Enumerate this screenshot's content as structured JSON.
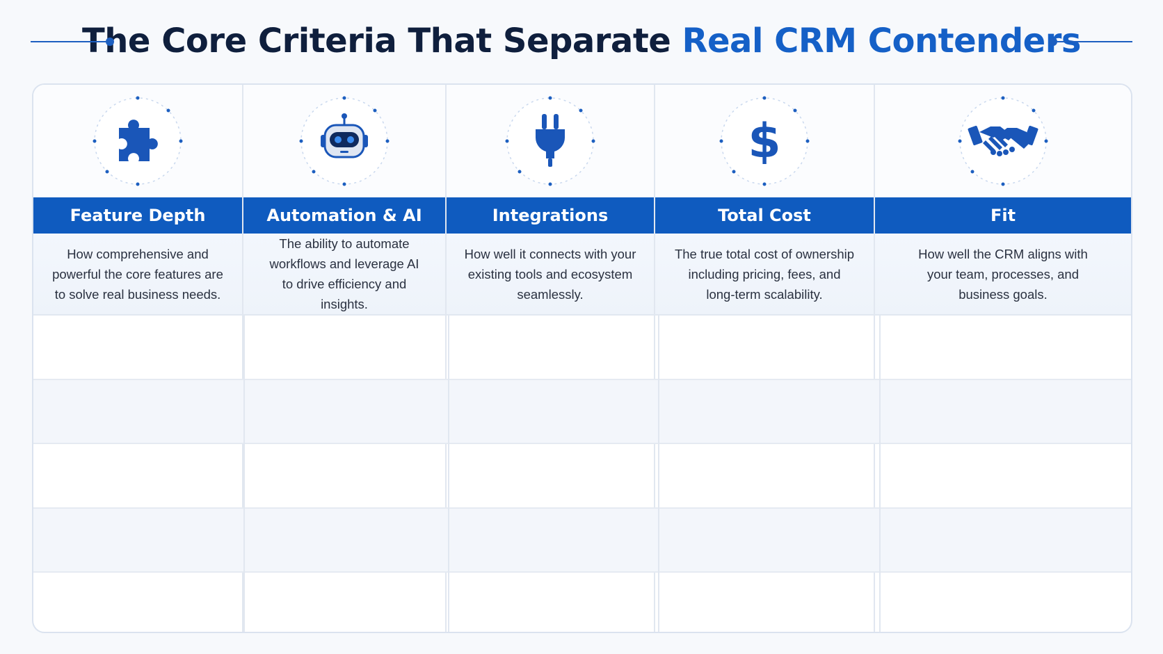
{
  "title": {
    "main": "The Core Criteria That Separate",
    "accent": "Real CRM Contenders"
  },
  "colors": {
    "brand_blue": "#0f5bbf",
    "title_dark": "#0f1f3d",
    "accent_blue": "#1560c7"
  },
  "criteria": [
    {
      "icon": "puzzle-icon",
      "label": "Feature Depth",
      "description": "How comprehensive and\npowerful the core features are\nto solve real business needs."
    },
    {
      "icon": "robot-icon",
      "label": "Automation & AI",
      "description": "The ability to automate\nworkflows and leverage AI\nto drive efficiency and insights."
    },
    {
      "icon": "plug-icon",
      "label": "Integrations",
      "description": "How well it connects with your\nexisting tools and ecosystem\nseamlessly."
    },
    {
      "icon": "dollar-icon",
      "label": "Total Cost",
      "description": "The true total cost of ownership\nincluding pricing, fees, and\nlong-term scalability."
    },
    {
      "icon": "handshake-icon",
      "label": "Fit",
      "description": "How well the CRM aligns with\nyour team, processes, and\nbusiness goals."
    }
  ]
}
